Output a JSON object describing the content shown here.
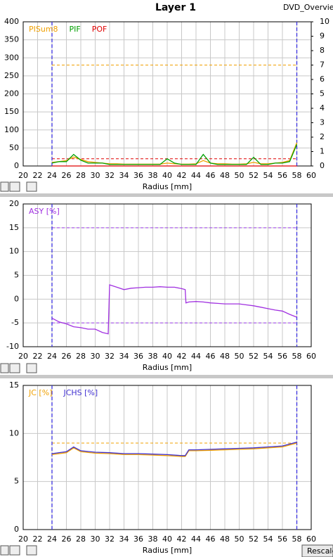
{
  "header": {
    "title": "Layer 1",
    "tab": "DVD_Overvie"
  },
  "rescale_button": "Rescale",
  "chart_data": [
    {
      "type": "line",
      "xlabel": "Radius [mm]",
      "x": [
        24,
        25,
        26,
        27,
        28,
        29,
        30,
        31,
        32,
        33,
        34,
        35,
        36,
        37,
        38,
        39,
        40,
        41,
        42,
        43,
        44,
        45,
        46,
        47,
        48,
        49,
        50,
        51,
        52,
        53,
        54,
        55,
        56,
        57,
        58
      ],
      "xlim": [
        20,
        60
      ],
      "xticks": [
        20,
        22,
        24,
        26,
        28,
        30,
        32,
        34,
        36,
        38,
        40,
        42,
        44,
        46,
        48,
        50,
        52,
        54,
        56,
        58,
        60
      ],
      "ylim": [
        0,
        400
      ],
      "yticks": [
        0,
        50,
        100,
        150,
        200,
        250,
        300,
        350,
        400
      ],
      "y2lim": [
        0,
        10
      ],
      "y2ticks": [
        0,
        1,
        2,
        3,
        4,
        5,
        6,
        7,
        8,
        9,
        10
      ],
      "grid": true,
      "markers_x": [
        24,
        58
      ],
      "marker_color": "#3a30e0",
      "limits": [
        {
          "value": 280,
          "color": "#f0a000"
        },
        {
          "value": 0.5,
          "axis": "y2",
          "color": "#e00000"
        }
      ],
      "series": [
        {
          "name": "PISum8",
          "color": "#f0a000",
          "values": [
            10,
            12,
            15,
            25,
            18,
            12,
            10,
            8,
            6,
            6,
            5,
            5,
            5,
            5,
            5,
            5,
            8,
            6,
            5,
            5,
            6,
            15,
            8,
            6,
            6,
            5,
            5,
            6,
            10,
            6,
            6,
            8,
            10,
            15,
            65
          ]
        },
        {
          "name": "PIF",
          "color": "#00a000",
          "axis": "y2",
          "values": [
            0.2,
            0.3,
            0.3,
            0.8,
            0.4,
            0.2,
            0.2,
            0.2,
            0.1,
            0.1,
            0.1,
            0.1,
            0.1,
            0.1,
            0.1,
            0.1,
            0.5,
            0.2,
            0.1,
            0.1,
            0.1,
            0.8,
            0.2,
            0.1,
            0.1,
            0.1,
            0.1,
            0.1,
            0.6,
            0.1,
            0.1,
            0.2,
            0.2,
            0.3,
            1.5
          ]
        },
        {
          "name": "POF",
          "color": "#e00000",
          "axis": "y2",
          "values": [
            0,
            0,
            0,
            0,
            0,
            0,
            0,
            0,
            0,
            0,
            0,
            0,
            0,
            0,
            0,
            0,
            0,
            0,
            0,
            0,
            0,
            0,
            0,
            0,
            0,
            0,
            0,
            0,
            0,
            0,
            0,
            0,
            0,
            0,
            0
          ]
        }
      ]
    },
    {
      "type": "line",
      "xlabel": "Radius [mm]",
      "x": [
        24,
        25,
        26,
        27,
        28,
        29,
        30,
        31,
        31.8,
        32,
        33,
        34,
        35,
        36,
        37,
        38,
        39,
        40,
        41,
        42,
        42.5,
        42.6,
        43,
        44,
        45,
        46,
        47,
        48,
        49,
        50,
        51,
        52,
        53,
        54,
        55,
        56,
        57,
        58
      ],
      "xlim": [
        20,
        60
      ],
      "xticks": [
        20,
        22,
        24,
        26,
        28,
        30,
        32,
        34,
        36,
        38,
        40,
        42,
        44,
        46,
        48,
        50,
        52,
        54,
        56,
        58,
        60
      ],
      "ylim": [
        -10,
        20
      ],
      "yticks": [
        -10,
        -5,
        0,
        5,
        10,
        15,
        20
      ],
      "grid": true,
      "markers_x": [
        24,
        58
      ],
      "marker_color": "#3a30e0",
      "limits": [
        {
          "value": 15,
          "color": "#a040f0"
        },
        {
          "value": -5,
          "color": "#a040f0"
        }
      ],
      "series": [
        {
          "name": "ASY [%]",
          "color": "#a030e0",
          "values": [
            -4,
            -4.8,
            -5.2,
            -5.8,
            -6,
            -6.3,
            -6.3,
            -7,
            -7.3,
            3,
            2.5,
            2,
            2.3,
            2.4,
            2.5,
            2.5,
            2.6,
            2.5,
            2.5,
            2.2,
            2,
            -0.8,
            -0.6,
            -0.5,
            -0.6,
            -0.8,
            -0.9,
            -1,
            -1,
            -1,
            -1.2,
            -1.4,
            -1.7,
            -2,
            -2.3,
            -2.5,
            -3.2,
            -3.8
          ]
        }
      ]
    },
    {
      "type": "line",
      "xlabel": "Radius [mm]",
      "x": [
        24,
        26,
        27,
        28,
        30,
        32,
        34,
        36,
        38,
        40,
        42,
        42.5,
        43,
        44,
        46,
        48,
        50,
        52,
        54,
        56,
        58
      ],
      "xlim": [
        20,
        60
      ],
      "xticks": [
        20,
        22,
        24,
        26,
        28,
        30,
        32,
        34,
        36,
        38,
        40,
        42,
        44,
        46,
        48,
        50,
        52,
        54,
        56,
        58,
        60
      ],
      "ylim": [
        0,
        15
      ],
      "yticks": [
        0,
        5,
        10,
        15
      ],
      "grid": true,
      "markers_x": [
        24,
        58
      ],
      "marker_color": "#3a30e0",
      "limits": [
        {
          "value": 9,
          "color": "#f0a000"
        }
      ],
      "series": [
        {
          "name": "JC [%]",
          "color": "#f0a000",
          "values": [
            7.8,
            8.0,
            8.5,
            8.1,
            7.95,
            7.9,
            7.8,
            7.8,
            7.75,
            7.7,
            7.6,
            7.6,
            8.2,
            8.2,
            8.25,
            8.3,
            8.35,
            8.4,
            8.5,
            8.6,
            9.0
          ]
        },
        {
          "name": "JCHS [%]",
          "color": "#4030d0",
          "values": [
            7.9,
            8.1,
            8.6,
            8.2,
            8.05,
            8.0,
            7.9,
            7.9,
            7.85,
            7.8,
            7.7,
            7.7,
            8.3,
            8.3,
            8.35,
            8.4,
            8.45,
            8.5,
            8.6,
            8.7,
            9.1
          ]
        }
      ]
    }
  ]
}
